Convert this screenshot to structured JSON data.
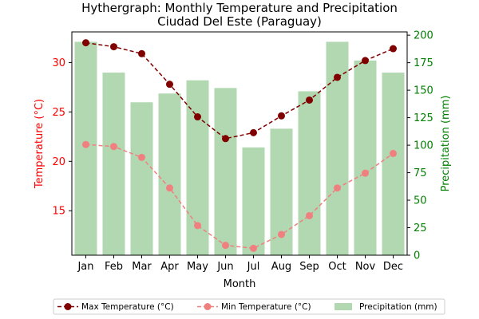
{
  "chart_data": {
    "type": "bar+line",
    "title": "Hythergraph: Monthly Temperature and Precipitation",
    "subtitle": "Ciudad Del Este (Paraguay)",
    "xlabel": "Month",
    "ylabel_left": "Temperature (°C)",
    "ylabel_right": "Precipitation (mm)",
    "categories": [
      "Jan",
      "Feb",
      "Mar",
      "Apr",
      "May",
      "Jun",
      "Jul",
      "Aug",
      "Sep",
      "Oct",
      "Nov",
      "Dec"
    ],
    "ylim_left": [
      10.5,
      33.1
    ],
    "ylim_right": [
      0,
      203
    ],
    "yticks_left": [
      15,
      20,
      25,
      30
    ],
    "yticks_right": [
      0,
      25,
      50,
      75,
      100,
      125,
      150,
      175,
      200
    ],
    "series": [
      {
        "name": "Max Temperature (°C)",
        "axis": "left",
        "kind": "line",
        "color": "#800000",
        "style": "dashed",
        "values": [
          32.0,
          31.6,
          30.9,
          27.8,
          24.5,
          22.3,
          22.9,
          24.6,
          26.2,
          28.5,
          30.2,
          31.4
        ]
      },
      {
        "name": "Min Temperature (°C)",
        "axis": "left",
        "kind": "line",
        "color": "#f08080",
        "style": "dashed",
        "values": [
          21.7,
          21.5,
          20.4,
          17.3,
          13.5,
          11.5,
          11.2,
          12.6,
          14.5,
          17.3,
          18.8,
          20.8
        ]
      },
      {
        "name": "Precipitation (mm)",
        "axis": "right",
        "kind": "bar",
        "color": "#b1d8b1",
        "values": [
          194,
          166,
          139,
          147,
          159,
          152,
          98,
          115,
          149,
          194,
          177,
          166
        ]
      }
    ],
    "left_axis_color": "#ff0000",
    "right_axis_color": "#008000",
    "legend_position": "bottom-center",
    "grid": false
  }
}
